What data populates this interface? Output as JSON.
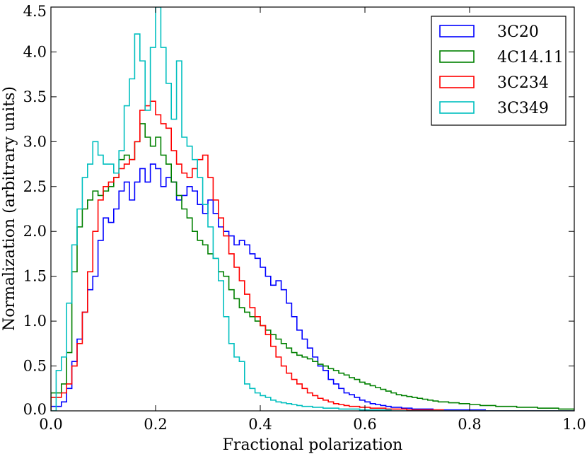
{
  "chart_data": {
    "type": "histogram",
    "title": "",
    "xlabel": "Fractional polarization",
    "ylabel": "Normalization (arbitrary units)",
    "xlim": [
      0.0,
      1.0
    ],
    "ylim": [
      0.0,
      4.5
    ],
    "grid": false,
    "legend_position": "top-right",
    "x_ticks": [
      "0.0",
      "0.2",
      "0.4",
      "0.6",
      "0.8",
      "1.0"
    ],
    "y_ticks": [
      "0.0",
      "0.5",
      "1.0",
      "1.5",
      "2.0",
      "2.5",
      "3.0",
      "3.5",
      "4.0",
      "4.5"
    ],
    "bin_width": 0.01,
    "series": [
      {
        "name": "3C20",
        "color": "#0000ff",
        "values": [
          0.05,
          0.05,
          0.1,
          0.25,
          0.55,
          0.8,
          1.1,
          1.35,
          1.5,
          1.9,
          2.15,
          2.1,
          2.25,
          2.45,
          2.55,
          2.35,
          2.55,
          2.7,
          2.55,
          2.75,
          2.7,
          2.5,
          2.6,
          2.55,
          2.35,
          2.4,
          2.5,
          2.45,
          2.3,
          2.2,
          2.35,
          2.2,
          2.05,
          2.0,
          1.95,
          1.85,
          1.9,
          1.85,
          1.75,
          1.7,
          1.6,
          1.5,
          1.4,
          1.45,
          1.35,
          1.2,
          1.05,
          0.9,
          0.8,
          0.7,
          0.6,
          0.5,
          0.45,
          0.35,
          0.3,
          0.25,
          0.2,
          0.18,
          0.15,
          0.12,
          0.1,
          0.08,
          0.07,
          0.06,
          0.05,
          0.04,
          0.04,
          0.03,
          0.03,
          0.02,
          0.02,
          0.02,
          0.02,
          0.01,
          0.01,
          0.01,
          0.01,
          0.01,
          0.01,
          0.01,
          0.01,
          0.01,
          0.01,
          0.0,
          0.0,
          0.0,
          0.0,
          0.0,
          0.0,
          0.0,
          0.0,
          0.0,
          0.0,
          0.0,
          0.0,
          0.0,
          0.0,
          0.0,
          0.0,
          0.0
        ]
      },
      {
        "name": "4C14.11",
        "color": "#008000",
        "values": [
          0.2,
          0.2,
          0.3,
          0.65,
          1.55,
          2.05,
          2.25,
          2.35,
          2.45,
          2.4,
          2.45,
          2.5,
          2.6,
          2.8,
          2.85,
          2.8,
          3.0,
          3.2,
          3.05,
          2.95,
          3.05,
          2.85,
          2.75,
          2.55,
          2.4,
          2.25,
          2.15,
          2.0,
          1.9,
          1.85,
          1.75,
          1.7,
          1.55,
          1.5,
          1.35,
          1.25,
          1.15,
          1.1,
          1.05,
          1.0,
          0.95,
          0.9,
          0.85,
          0.8,
          0.75,
          0.7,
          0.65,
          0.62,
          0.6,
          0.58,
          0.55,
          0.52,
          0.5,
          0.47,
          0.45,
          0.42,
          0.4,
          0.37,
          0.35,
          0.32,
          0.3,
          0.28,
          0.26,
          0.24,
          0.22,
          0.2,
          0.18,
          0.17,
          0.16,
          0.15,
          0.14,
          0.13,
          0.12,
          0.11,
          0.1,
          0.1,
          0.09,
          0.09,
          0.08,
          0.08,
          0.07,
          0.07,
          0.06,
          0.06,
          0.06,
          0.05,
          0.05,
          0.05,
          0.05,
          0.04,
          0.04,
          0.04,
          0.04,
          0.03,
          0.03,
          0.03,
          0.03,
          0.02,
          0.02,
          0.02
        ]
      },
      {
        "name": "3C234",
        "color": "#ff0000",
        "values": [
          0.15,
          0.15,
          0.2,
          0.3,
          0.5,
          0.75,
          1.1,
          1.55,
          2.0,
          2.35,
          2.5,
          2.55,
          2.6,
          2.7,
          2.75,
          2.8,
          3.0,
          3.35,
          3.4,
          3.45,
          3.3,
          3.2,
          3.15,
          2.9,
          2.75,
          2.65,
          2.6,
          2.7,
          2.8,
          2.85,
          2.6,
          2.35,
          2.15,
          1.95,
          1.75,
          1.6,
          1.45,
          1.3,
          1.15,
          1.05,
          0.95,
          0.85,
          0.72,
          0.6,
          0.5,
          0.42,
          0.35,
          0.3,
          0.25,
          0.2,
          0.17,
          0.14,
          0.12,
          0.1,
          0.08,
          0.07,
          0.06,
          0.05,
          0.05,
          0.04,
          0.04,
          0.03,
          0.03,
          0.03,
          0.02,
          0.02,
          0.02,
          0.02,
          0.01,
          0.01,
          0.01,
          0.01,
          0.01,
          0.01,
          0.01,
          0.0,
          0.0,
          0.0,
          0.0,
          0.0,
          0.0,
          0.0,
          0.0,
          0.0,
          0.0,
          0.0,
          0.0,
          0.0,
          0.0,
          0.0,
          0.0,
          0.0,
          0.0,
          0.0,
          0.0,
          0.0,
          0.0,
          0.0,
          0.0,
          0.0
        ]
      },
      {
        "name": "3C349",
        "color": "#00bfbf",
        "values": [
          0.0,
          0.45,
          0.6,
          1.2,
          1.85,
          2.25,
          2.6,
          2.75,
          3.0,
          2.85,
          2.75,
          2.75,
          2.65,
          2.9,
          3.4,
          3.7,
          4.2,
          3.9,
          3.35,
          4.05,
          4.5,
          4.05,
          3.65,
          3.25,
          3.9,
          3.05,
          2.95,
          2.8,
          2.6,
          2.3,
          2.05,
          1.7,
          1.45,
          1.05,
          0.75,
          0.6,
          0.55,
          0.3,
          0.25,
          0.2,
          0.17,
          0.15,
          0.12,
          0.1,
          0.09,
          0.08,
          0.07,
          0.06,
          0.05,
          0.05,
          0.04,
          0.04,
          0.03,
          0.03,
          0.03,
          0.02,
          0.02,
          0.02,
          0.02,
          0.01,
          0.01,
          0.01,
          0.01,
          0.01,
          0.01,
          0.0,
          0.0,
          0.0,
          0.0,
          0.0,
          0.0,
          0.0,
          0.0,
          0.0,
          0.0,
          0.0,
          0.0,
          0.0,
          0.0,
          0.0,
          0.0,
          0.0,
          0.0,
          0.0,
          0.0,
          0.0,
          0.0,
          0.0,
          0.0,
          0.0,
          0.0,
          0.0,
          0.0,
          0.0,
          0.0,
          0.0,
          0.0,
          0.0,
          0.0,
          0.0
        ]
      }
    ]
  }
}
